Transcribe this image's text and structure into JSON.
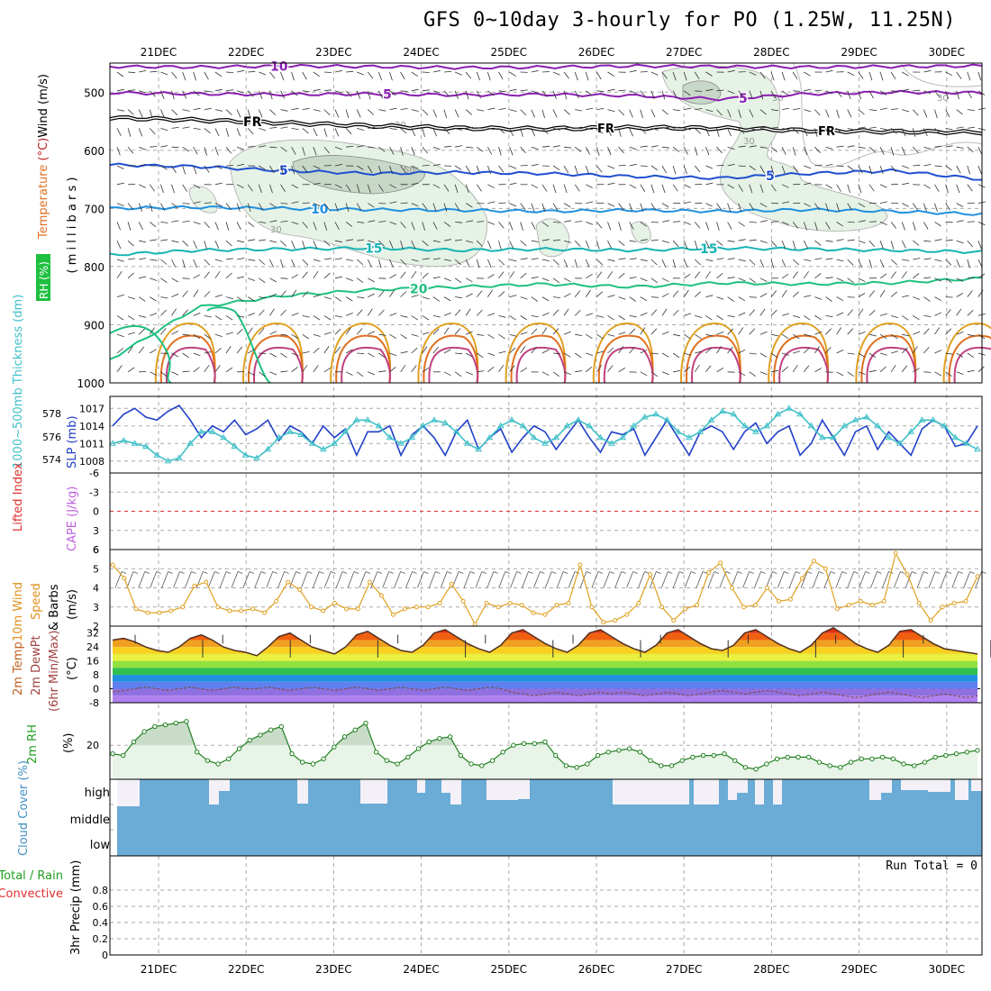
{
  "header": {
    "title": "GFS 0~10day 3-hourly for PO (1.25W, 11.25N)"
  },
  "dates": [
    "21DEC",
    "22DEC",
    "23DEC",
    "24DEC",
    "25DEC",
    "26DEC",
    "27DEC",
    "28DEC",
    "29DEC",
    "30DEC"
  ],
  "colors": {
    "purple": "#8a1fb0",
    "freeze": "#000000",
    "blue": "#1f4fd0",
    "lightblue": "#1f8fe0",
    "teal": "#17b3b3",
    "green": "#1fc080",
    "orange": "#e0a020",
    "rh": "#e5f2e5",
    "cloud": "#6aacd6",
    "slp": "#2040c8",
    "thick": "#40c0c8"
  },
  "chart_data": [
    {
      "panel": "upper-air",
      "type": "contour",
      "ylabel_parts": [
        "Temperature",
        " (°C)",
        "Wind",
        " (m/s)"
      ],
      "ylabel2": "( m i l l i b a r s )",
      "rh_label": "RH (%)",
      "yticks": [
        "500",
        "600",
        "700",
        "800",
        "900",
        "1000"
      ],
      "ylim": [
        450,
        1000
      ],
      "levels": [
        {
          "label": "10",
          "color": "purple",
          "p": [
            456,
            457,
            455,
            456,
            458,
            457,
            455,
            456,
            457,
            456,
            455
          ]
        },
        {
          "label": "5",
          "color": "purple",
          "p": [
            501,
            503,
            504,
            503,
            505,
            504,
            506,
            512,
            503,
            500,
            501
          ]
        },
        {
          "label": "FR",
          "color": "freeze",
          "p": [
            544,
            548,
            553,
            558,
            562,
            563,
            561,
            562,
            566,
            568,
            569
          ]
        },
        {
          "label": "5",
          "color": "blue",
          "p": [
            625,
            628,
            635,
            640,
            638,
            640,
            645,
            648,
            640,
            635,
            650
          ]
        },
        {
          "label": "10",
          "color": "lightblue",
          "p": [
            700,
            698,
            700,
            702,
            703,
            705,
            703,
            705,
            702,
            705,
            710
          ]
        },
        {
          "label": "15",
          "color": "teal",
          "p": [
            780,
            772,
            770,
            768,
            772,
            770,
            772,
            768,
            770,
            772,
            775
          ]
        },
        {
          "label": "20",
          "color": "green",
          "p": [
            960,
            870,
            850,
            840,
            835,
            830,
            835,
            828,
            830,
            828,
            820
          ]
        }
      ],
      "rh_contours": [
        "30",
        "50"
      ]
    },
    {
      "panel": "slp-thickness",
      "type": "line",
      "ylabel_left": "1000~500mb Thickness (dm)",
      "ylabel_right": "SLP (mb)",
      "yticks_left": [
        "578",
        "576",
        "574"
      ],
      "yticks_right": [
        "1017",
        "1014",
        "1011",
        "1008"
      ],
      "series": [
        {
          "name": "SLP",
          "color": "slp",
          "values": [
            1014,
            1016,
            1017,
            1015.5,
            1015,
            1016.5,
            1017.5,
            1015,
            1012,
            1014,
            1013,
            1015,
            1012.5,
            1013.5,
            1015,
            1011.5,
            1014,
            1013,
            1011,
            1014,
            1012,
            1013.5,
            1009,
            1013,
            1013,
            1014,
            1009,
            1012.5,
            1014,
            1012,
            1009,
            1013,
            1015,
            1010,
            1012,
            1013.5,
            1009.5,
            1012,
            1014,
            1013,
            1010,
            1012.5,
            1015,
            1012,
            1009.5,
            1013,
            1012.5,
            1013.5,
            1009,
            1012,
            1015,
            1012,
            1009,
            1013,
            1014,
            1013,
            1010,
            1013,
            1014.5,
            1011,
            1013,
            1014,
            1009,
            1011,
            1015,
            1012,
            1009,
            1013,
            1014,
            1010,
            1013,
            1011,
            1009,
            1013.5,
            1015,
            1014,
            1010.5,
            1011,
            1014
          ]
        },
        {
          "name": "Thickness",
          "color": "thick",
          "values": [
            1011,
            1011.5,
            1011,
            1010.5,
            1009,
            1008,
            1008.5,
            1011,
            1013,
            1013,
            1012,
            1010.5,
            1009,
            1008.5,
            1010,
            1012,
            1013,
            1012.5,
            1011,
            1010,
            1011,
            1013,
            1015,
            1015,
            1014,
            1012,
            1011,
            1012,
            1014,
            1015,
            1014.5,
            1013,
            1011,
            1010,
            1012,
            1014,
            1015,
            1014,
            1012,
            1011,
            1012,
            1014,
            1015,
            1014,
            1012,
            1011,
            1012,
            1014,
            1015.5,
            1016,
            1015,
            1013,
            1012,
            1013,
            1015,
            1016.5,
            1016,
            1014,
            1013,
            1014,
            1016,
            1017,
            1016,
            1014,
            1012,
            1012,
            1014,
            1015,
            1015.5,
            1014,
            1012,
            1011,
            1013,
            1015,
            1015,
            1014,
            1012,
            1011,
            1010
          ]
        }
      ]
    },
    {
      "panel": "cape-li",
      "type": "line",
      "ylabel_parts": [
        "Lifted Index",
        "CAPE (J/kg)"
      ],
      "yticks": [
        "-6",
        "-3",
        "0",
        "3",
        "6"
      ],
      "ylim": [
        -6,
        6
      ]
    },
    {
      "panel": "wind10m",
      "type": "line",
      "ylabel_parts": [
        "10m Wind",
        "Speed",
        "& Barbs",
        "(m/s)"
      ],
      "yticks": [
        "6",
        "5",
        "4",
        "3",
        "2"
      ],
      "ylim": [
        2,
        6
      ],
      "series": [
        {
          "name": "10m Wind Speed",
          "color": "orange",
          "values": [
            5.2,
            4.5,
            2.9,
            2.7,
            2.7,
            2.8,
            3.0,
            4.1,
            4.3,
            3.0,
            2.8,
            2.8,
            2.9,
            2.7,
            3.3,
            4.3,
            3.9,
            3.0,
            2.8,
            3.2,
            2.9,
            2.9,
            4.3,
            3.6,
            2.6,
            2.9,
            3.0,
            3.0,
            3.2,
            4.2,
            3.3,
            2.1,
            3.2,
            3.0,
            3.2,
            3.1,
            2.7,
            2.6,
            3.1,
            3.2,
            5.2,
            3.0,
            2.2,
            2.3,
            2.6,
            3.2,
            4.7,
            3.0,
            2.3,
            2.9,
            3.1,
            4.8,
            5.3,
            4.0,
            3.0,
            3.1,
            4.0,
            3.3,
            3.4,
            4.5,
            5.4,
            5.0,
            2.9,
            3.1,
            3.3,
            3.1,
            3.3,
            5.8,
            4.7,
            3.2,
            2.3,
            3.0,
            3.2,
            3.3,
            4.6
          ]
        }
      ]
    },
    {
      "panel": "temp2m",
      "type": "area",
      "ylabel_parts": [
        "2m Temp",
        "2m DewPt",
        "(6hr Min/Max)",
        "(°C)"
      ],
      "yticks": [
        "32",
        "24",
        "16",
        "8",
        "0",
        "-8"
      ],
      "ylim": [
        -8,
        36
      ],
      "series": [
        {
          "name": "2m Temp",
          "values": [
            28,
            29,
            27,
            24,
            22,
            21,
            24,
            29,
            31,
            28,
            24,
            22,
            21,
            19,
            24,
            30,
            32,
            28,
            24,
            22,
            20,
            24,
            31,
            33,
            29,
            25,
            22,
            21,
            25,
            32,
            34,
            30,
            26,
            23,
            21,
            25,
            32,
            34,
            30,
            26,
            23,
            21,
            25,
            32,
            34,
            30,
            26,
            23,
            21,
            25,
            32,
            34,
            30,
            26,
            23,
            22,
            25,
            32,
            34,
            30,
            26,
            23,
            21,
            25,
            32,
            35,
            31,
            26,
            23,
            21,
            25,
            33,
            34,
            30,
            26,
            23,
            22,
            21,
            20
          ]
        },
        {
          "name": "2m DewPt",
          "values": [
            -2,
            -1,
            0,
            1,
            0,
            -1,
            0,
            1,
            0,
            -1,
            0,
            1,
            0,
            0,
            1,
            0,
            -1,
            0,
            1,
            0,
            -1,
            0,
            1,
            0,
            -1,
            0,
            1,
            0,
            -1,
            0,
            1,
            0,
            -1,
            0,
            1,
            0,
            -2,
            -3,
            -4,
            -3,
            -2,
            -3,
            -4,
            -3,
            -2,
            -3,
            -2,
            -3,
            -4,
            -3,
            -2,
            -3,
            -4,
            -3,
            -2,
            -1,
            -2,
            -3,
            -2,
            -1,
            -2,
            -3,
            -4,
            -3,
            -2,
            -3,
            -4,
            -5,
            -4,
            -3,
            -2,
            -3,
            -4,
            -5,
            -4,
            -3,
            -4,
            -5,
            -4
          ]
        }
      ]
    },
    {
      "panel": "rh2m",
      "type": "area",
      "ylabel_parts": [
        "2m RH",
        "(%)"
      ],
      "yticks": [
        "20"
      ],
      "ylim": [
        0,
        45
      ],
      "series": [
        {
          "name": "2m RH",
          "values": [
            15,
            14,
            22,
            28,
            31,
            32,
            33,
            34,
            16,
            11,
            9,
            12,
            18,
            23,
            26,
            29,
            31,
            15,
            10,
            9,
            12,
            19,
            25,
            29,
            33,
            16,
            11,
            9,
            13,
            18,
            22,
            24,
            25,
            14,
            9,
            8,
            11,
            16,
            20,
            21,
            21,
            22,
            14,
            8,
            7,
            9,
            14,
            16,
            17,
            18,
            16,
            11,
            8,
            8,
            11,
            13,
            14,
            14,
            15,
            11,
            7,
            6,
            9,
            12,
            13,
            13,
            13,
            10,
            8,
            7,
            10,
            12,
            12,
            13,
            12,
            9,
            8,
            10,
            13,
            14,
            15,
            16,
            17
          ]
        }
      ]
    },
    {
      "panel": "cloud",
      "type": "bar",
      "ylabel": "Cloud Cover (%)",
      "yticks": [
        "high",
        "middle",
        "low"
      ]
    },
    {
      "panel": "precip",
      "type": "bar",
      "ylabel_parts": [
        "Total / Rain",
        "Convective",
        "3hr Precip (mm)"
      ],
      "yticks": [
        "0.8",
        "0.6",
        "0.4",
        "0.2",
        "0"
      ],
      "ylim": [
        0,
        1
      ],
      "run_total": "Run Total = 0"
    }
  ]
}
